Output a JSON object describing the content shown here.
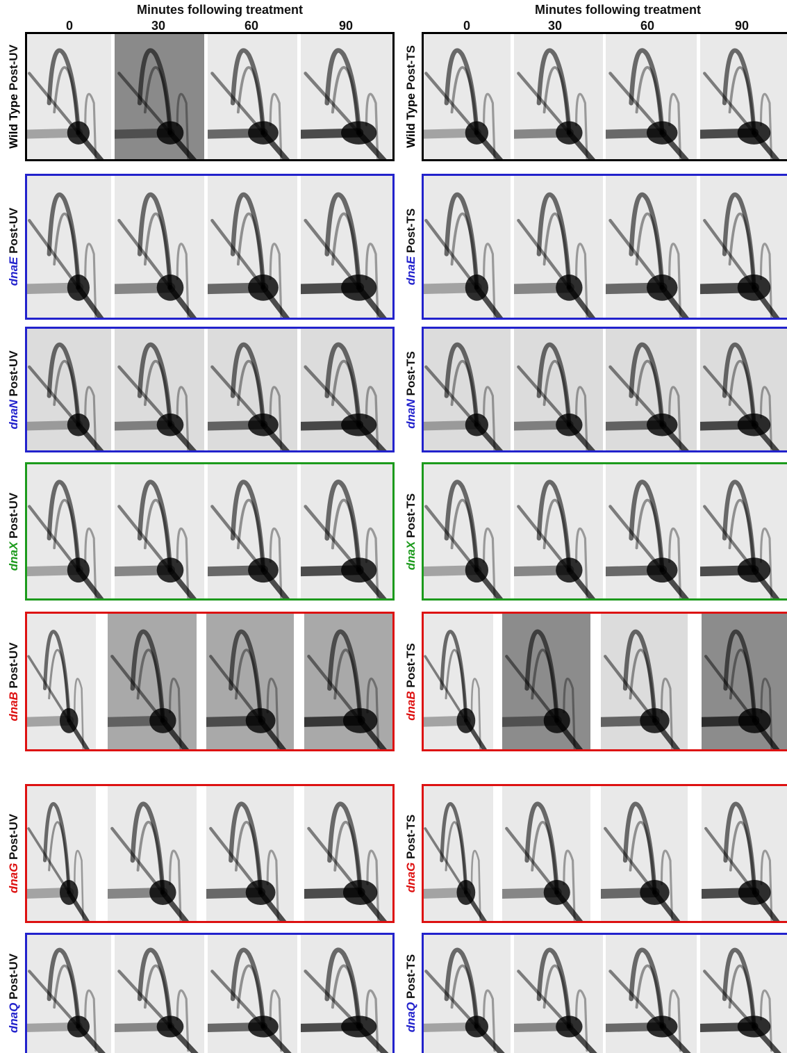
{
  "headers": {
    "left": {
      "title": "Minutes following treatment",
      "timepoints": [
        "0",
        "30",
        "60",
        "90"
      ]
    },
    "right": {
      "title": "Minutes following treatment",
      "timepoints": [
        "0",
        "30",
        "60",
        "90"
      ]
    }
  },
  "rows": [
    {
      "gene": "Wild Type",
      "italic": false,
      "gene_color": "#000000",
      "frame_color": "#000000",
      "left_label": "Post-UV",
      "right_label": "Post-TS"
    },
    {
      "gene": "dnaE",
      "italic": true,
      "gene_color": "#2222cc",
      "frame_color": "#2222cc",
      "left_label": "Post-UV",
      "right_label": "Post-TS"
    },
    {
      "gene": "dnaN",
      "italic": true,
      "gene_color": "#2222cc",
      "frame_color": "#2222cc",
      "left_label": "Post-UV",
      "right_label": "Post-TS"
    },
    {
      "gene": "dnaX",
      "italic": true,
      "gene_color": "#1c9a1c",
      "frame_color": "#1c9a1c",
      "left_label": "Post-UV",
      "right_label": "Post-TS"
    },
    {
      "gene": "dnaB",
      "italic": true,
      "gene_color": "#dd1111",
      "frame_color": "#dd1111",
      "left_label": "Post-UV",
      "right_label": "Post-TS"
    },
    {
      "gene": "dnaG",
      "italic": true,
      "gene_color": "#dd1111",
      "frame_color": "#dd1111",
      "left_label": "Post-UV",
      "right_label": "Post-TS"
    },
    {
      "gene": "dnaQ",
      "italic": true,
      "gene_color": "#2222cc",
      "frame_color": "#2222cc",
      "left_label": "Post-UV",
      "right_label": "Post-TS"
    }
  ]
}
